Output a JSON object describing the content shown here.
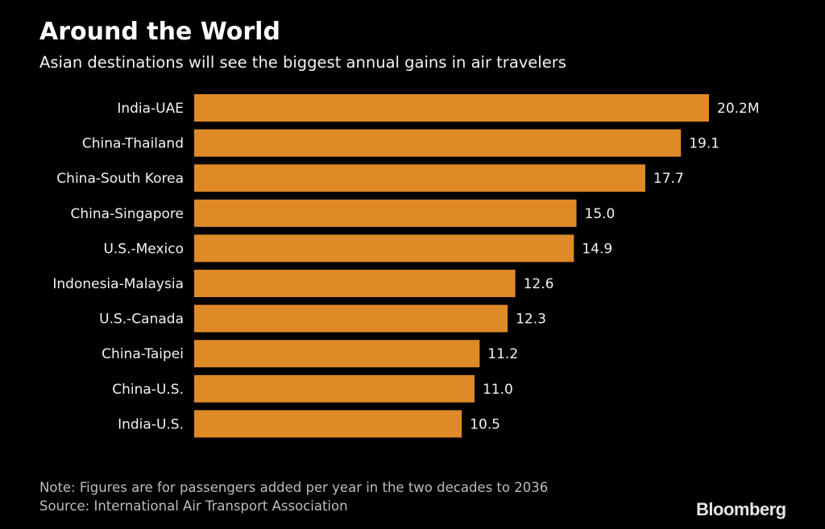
{
  "chart_data": {
    "type": "bar",
    "orientation": "horizontal",
    "title": "Around the World",
    "subtitle": "Asian destinations will see the biggest annual gains in air travelers",
    "categories": [
      "India-UAE",
      "China-Thailand",
      "China-South Korea",
      "China-Singapore",
      "U.S.-Mexico",
      "Indonesia-Malaysia",
      "U.S.-Canada",
      "China-Taipei",
      "China-U.S.",
      "India-U.S."
    ],
    "values": [
      20.2,
      19.1,
      17.7,
      15.0,
      14.9,
      12.6,
      12.3,
      11.2,
      11.0,
      10.5
    ],
    "value_labels": [
      "20.2M",
      "19.1",
      "17.7",
      "15.0",
      "14.9",
      "12.6",
      "12.3",
      "11.2",
      "11.0",
      "10.5"
    ],
    "unit": "million passengers",
    "xlim": [
      0,
      20.2
    ],
    "grid": false,
    "bar_color": "#df8a27"
  },
  "note": "Note: Figures are for passengers added per year in the two decades to 2036",
  "source": "Source: International Air Transport Association",
  "logo": "Bloomberg"
}
